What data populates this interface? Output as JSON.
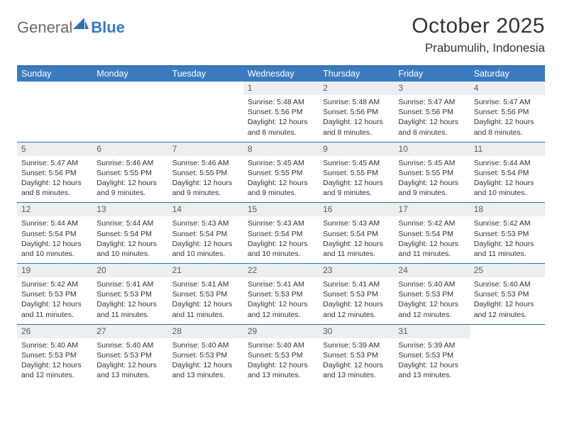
{
  "colors": {
    "header_bg": "#3a7bbf",
    "border": "#2f6fb0",
    "daynum_bg": "#eceff1",
    "text": "#333333",
    "page_bg": "#ffffff"
  },
  "typography": {
    "title_fontsize": 30,
    "location_fontsize": 17,
    "dow_fontsize": 12.5,
    "daynum_fontsize": 12,
    "info_fontsize": 10.5,
    "font_family": "Arial"
  },
  "logo": {
    "general": "General",
    "blue": "Blue"
  },
  "title": "October 2025",
  "location": "Prabumulih, Indonesia",
  "days_of_week": [
    "Sunday",
    "Monday",
    "Tuesday",
    "Wednesday",
    "Thursday",
    "Friday",
    "Saturday"
  ],
  "first_weekday_index": 3,
  "days": [
    {
      "n": 1,
      "sunrise": "5:48 AM",
      "sunset": "5:56 PM",
      "daylight": "12 hours and 8 minutes."
    },
    {
      "n": 2,
      "sunrise": "5:48 AM",
      "sunset": "5:56 PM",
      "daylight": "12 hours and 8 minutes."
    },
    {
      "n": 3,
      "sunrise": "5:47 AM",
      "sunset": "5:56 PM",
      "daylight": "12 hours and 8 minutes."
    },
    {
      "n": 4,
      "sunrise": "5:47 AM",
      "sunset": "5:56 PM",
      "daylight": "12 hours and 8 minutes."
    },
    {
      "n": 5,
      "sunrise": "5:47 AM",
      "sunset": "5:56 PM",
      "daylight": "12 hours and 8 minutes."
    },
    {
      "n": 6,
      "sunrise": "5:46 AM",
      "sunset": "5:55 PM",
      "daylight": "12 hours and 9 minutes."
    },
    {
      "n": 7,
      "sunrise": "5:46 AM",
      "sunset": "5:55 PM",
      "daylight": "12 hours and 9 minutes."
    },
    {
      "n": 8,
      "sunrise": "5:45 AM",
      "sunset": "5:55 PM",
      "daylight": "12 hours and 9 minutes."
    },
    {
      "n": 9,
      "sunrise": "5:45 AM",
      "sunset": "5:55 PM",
      "daylight": "12 hours and 9 minutes."
    },
    {
      "n": 10,
      "sunrise": "5:45 AM",
      "sunset": "5:55 PM",
      "daylight": "12 hours and 9 minutes."
    },
    {
      "n": 11,
      "sunrise": "5:44 AM",
      "sunset": "5:54 PM",
      "daylight": "12 hours and 10 minutes."
    },
    {
      "n": 12,
      "sunrise": "5:44 AM",
      "sunset": "5:54 PM",
      "daylight": "12 hours and 10 minutes."
    },
    {
      "n": 13,
      "sunrise": "5:44 AM",
      "sunset": "5:54 PM",
      "daylight": "12 hours and 10 minutes."
    },
    {
      "n": 14,
      "sunrise": "5:43 AM",
      "sunset": "5:54 PM",
      "daylight": "12 hours and 10 minutes."
    },
    {
      "n": 15,
      "sunrise": "5:43 AM",
      "sunset": "5:54 PM",
      "daylight": "12 hours and 10 minutes."
    },
    {
      "n": 16,
      "sunrise": "5:43 AM",
      "sunset": "5:54 PM",
      "daylight": "12 hours and 11 minutes."
    },
    {
      "n": 17,
      "sunrise": "5:42 AM",
      "sunset": "5:54 PM",
      "daylight": "12 hours and 11 minutes."
    },
    {
      "n": 18,
      "sunrise": "5:42 AM",
      "sunset": "5:53 PM",
      "daylight": "12 hours and 11 minutes."
    },
    {
      "n": 19,
      "sunrise": "5:42 AM",
      "sunset": "5:53 PM",
      "daylight": "12 hours and 11 minutes."
    },
    {
      "n": 20,
      "sunrise": "5:41 AM",
      "sunset": "5:53 PM",
      "daylight": "12 hours and 11 minutes."
    },
    {
      "n": 21,
      "sunrise": "5:41 AM",
      "sunset": "5:53 PM",
      "daylight": "12 hours and 11 minutes."
    },
    {
      "n": 22,
      "sunrise": "5:41 AM",
      "sunset": "5:53 PM",
      "daylight": "12 hours and 12 minutes."
    },
    {
      "n": 23,
      "sunrise": "5:41 AM",
      "sunset": "5:53 PM",
      "daylight": "12 hours and 12 minutes."
    },
    {
      "n": 24,
      "sunrise": "5:40 AM",
      "sunset": "5:53 PM",
      "daylight": "12 hours and 12 minutes."
    },
    {
      "n": 25,
      "sunrise": "5:40 AM",
      "sunset": "5:53 PM",
      "daylight": "12 hours and 12 minutes."
    },
    {
      "n": 26,
      "sunrise": "5:40 AM",
      "sunset": "5:53 PM",
      "daylight": "12 hours and 12 minutes."
    },
    {
      "n": 27,
      "sunrise": "5:40 AM",
      "sunset": "5:53 PM",
      "daylight": "12 hours and 13 minutes."
    },
    {
      "n": 28,
      "sunrise": "5:40 AM",
      "sunset": "5:53 PM",
      "daylight": "12 hours and 13 minutes."
    },
    {
      "n": 29,
      "sunrise": "5:40 AM",
      "sunset": "5:53 PM",
      "daylight": "12 hours and 13 minutes."
    },
    {
      "n": 30,
      "sunrise": "5:39 AM",
      "sunset": "5:53 PM",
      "daylight": "12 hours and 13 minutes."
    },
    {
      "n": 31,
      "sunrise": "5:39 AM",
      "sunset": "5:53 PM",
      "daylight": "12 hours and 13 minutes."
    }
  ],
  "labels": {
    "sunrise": "Sunrise:",
    "sunset": "Sunset:",
    "daylight": "Daylight:"
  }
}
